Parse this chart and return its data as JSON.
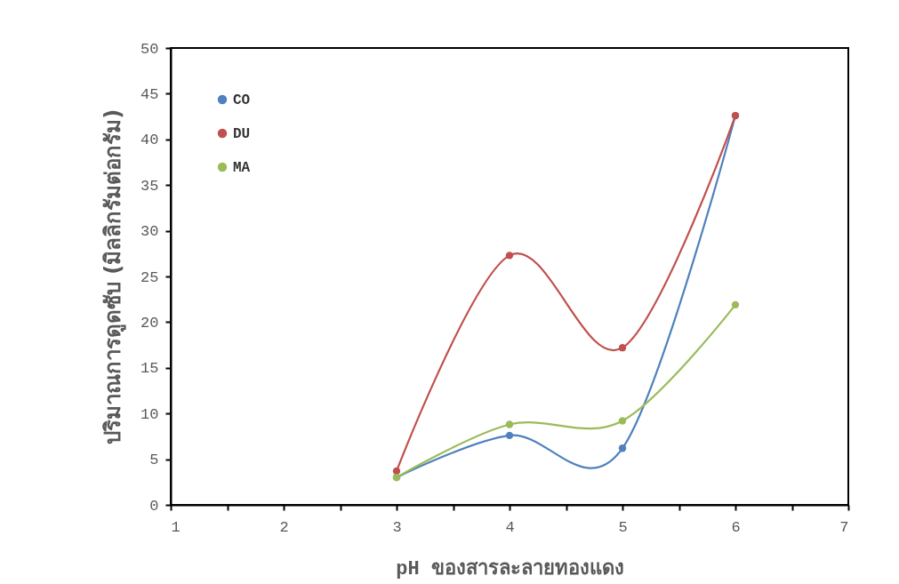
{
  "chart_data": {
    "type": "line",
    "xlabel": "pH  ของสารละลายทองแดง",
    "ylabel": "ปริมาณการดูดซับ (มิลลิกรัมต่อกรัม)",
    "x": [
      3,
      4,
      5,
      6
    ],
    "series": [
      {
        "name": "CO",
        "color": "#4f81bd",
        "values": [
          3.0,
          7.6,
          6.2,
          42.6
        ]
      },
      {
        "name": "DU",
        "color": "#c0504d",
        "values": [
          3.7,
          27.3,
          17.2,
          42.6
        ]
      },
      {
        "name": "MA",
        "color": "#9bbb59",
        "values": [
          3.0,
          8.8,
          9.2,
          21.9
        ]
      }
    ],
    "xlim": [
      1,
      7
    ],
    "xticks": [
      1,
      {
        "value": 1.5,
        "label": null
      },
      2,
      {
        "value": 2.5,
        "label": null
      },
      3,
      {
        "value": 3.5,
        "label": null
      },
      4,
      {
        "value": 4.5,
        "label": null
      },
      5,
      {
        "value": 5.5,
        "label": null
      },
      6,
      {
        "value": 6.5,
        "label": null
      },
      7
    ],
    "ylim": [
      0,
      50
    ],
    "yticks": [
      0,
      5,
      10,
      15,
      20,
      25,
      30,
      35,
      40,
      45,
      50
    ],
    "grid": false,
    "legend": "top left",
    "marker": "circle",
    "line_style": "solid"
  }
}
